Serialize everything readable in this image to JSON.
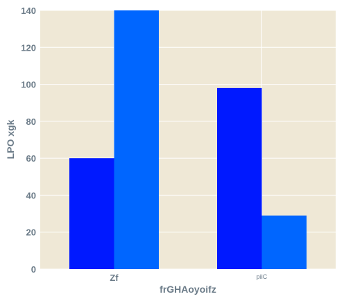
{
  "chart_data": {
    "type": "bar",
    "categories": [
      "Zf",
      "piiC"
    ],
    "series": [
      {
        "values": [
          60,
          98
        ],
        "color": "#0019ff"
      },
      {
        "values": [
          140,
          29
        ],
        "color": "#0066ff"
      }
    ],
    "xlabel": "frGHAoyoifz",
    "ylabel": "LPO xgk",
    "ylim": [
      0,
      140
    ],
    "yticks": [
      0,
      20,
      40,
      60,
      80,
      100,
      120,
      140
    ],
    "grid": true,
    "background": "#efe8d6",
    "grid_color": "#ffffff"
  }
}
